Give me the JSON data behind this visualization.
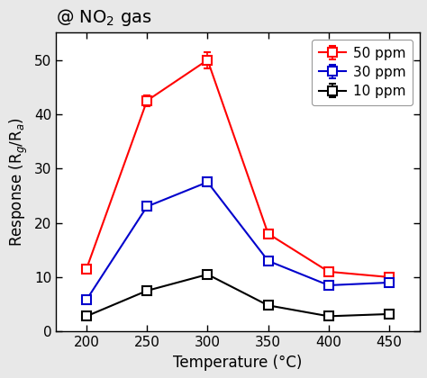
{
  "title": "@ NO$_2$ gas",
  "xlabel": "Temperature (°C)",
  "ylabel": "Response (R$_g$/R$_a$)",
  "x": [
    200,
    250,
    300,
    350,
    400,
    450
  ],
  "series": [
    {
      "label": "50 ppm",
      "color": "#ff0000",
      "values": [
        11.5,
        42.5,
        50.0,
        18.0,
        11.0,
        10.0
      ],
      "yerr": [
        0.5,
        1.0,
        1.5,
        0.8,
        0.5,
        0.5
      ]
    },
    {
      "label": "30 ppm",
      "color": "#0000cc",
      "values": [
        5.8,
        23.0,
        27.5,
        13.0,
        8.5,
        9.0
      ],
      "yerr": [
        0.4,
        0.7,
        0.8,
        0.6,
        0.4,
        0.4
      ]
    },
    {
      "label": "10 ppm",
      "color": "#000000",
      "values": [
        2.8,
        7.5,
        10.5,
        4.8,
        2.8,
        3.2
      ],
      "yerr": [
        0.3,
        0.4,
        0.5,
        0.3,
        0.3,
        0.3
      ]
    }
  ],
  "ylim": [
    0,
    55
  ],
  "xlim": [
    175,
    475
  ],
  "xticks": [
    200,
    250,
    300,
    350,
    400,
    450
  ],
  "yticks": [
    0,
    10,
    20,
    30,
    40,
    50
  ],
  "title_fontsize": 14,
  "axis_label_fontsize": 12,
  "tick_fontsize": 11,
  "legend_fontsize": 11,
  "marker": "s",
  "markersize": 7,
  "linewidth": 1.5,
  "outer_bg": "#e8e8e8",
  "inner_bg": "#ffffff"
}
